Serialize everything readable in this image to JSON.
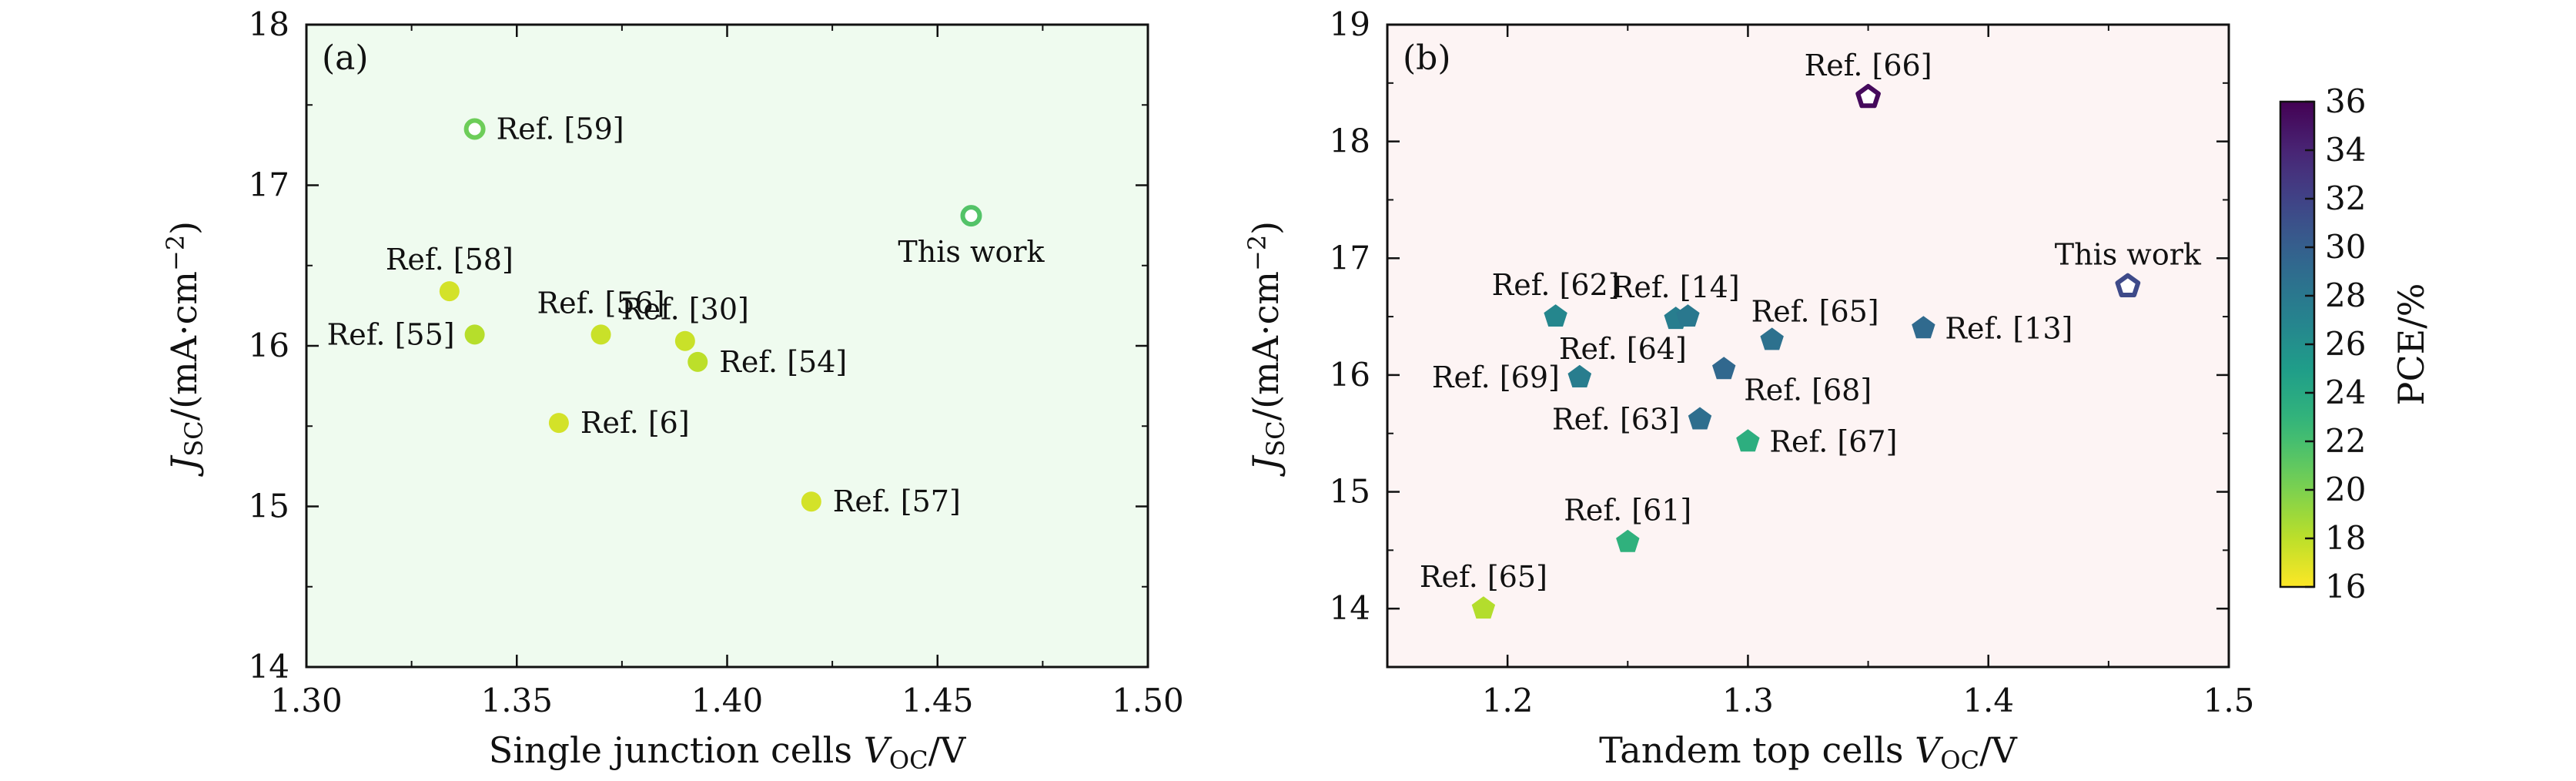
{
  "colors": {
    "panel_a_bg": "#effbef",
    "panel_b_bg": "#fdf4f4",
    "axis": "#111111"
  },
  "colorbar": {
    "label": "PCE/%",
    "range": [
      16,
      36
    ],
    "ticks": [
      16,
      18,
      20,
      22,
      24,
      26,
      28,
      30,
      32,
      34,
      36
    ],
    "colormap": "viridis-reversed"
  },
  "chart_data": [
    {
      "type": "scatter",
      "panel_label": "(a)",
      "title": "",
      "xlabel": "Single junction cells V_OC/V",
      "xlabel_main": "Single junction cells ",
      "xlabel_var": "V",
      "xlabel_sub": "OC",
      "xlabel_unit": "/V",
      "ylabel": "J_SC/(mA·cm^−2)",
      "ylabel_var": "J",
      "ylabel_sub": "SC",
      "ylabel_unit": "/(mA·cm",
      "ylabel_exp": "−2",
      "ylabel_close": ")",
      "xlim": [
        1.3,
        1.5
      ],
      "ylim": [
        14,
        18
      ],
      "xticks": [
        1.3,
        1.35,
        1.4,
        1.45,
        1.5
      ],
      "xtick_labels": [
        "1.30",
        "1.35",
        "1.40",
        "1.45",
        "1.50"
      ],
      "yticks": [
        14,
        15,
        16,
        17,
        18
      ],
      "ytick_labels": [
        "14",
        "15",
        "16",
        "17",
        "18"
      ],
      "marker": "circle",
      "grid": false,
      "points": [
        {
          "label": "Ref. [59]",
          "x": 1.34,
          "y": 17.35,
          "pce": 20.5,
          "hollow": true,
          "label_pos": "right"
        },
        {
          "label": "This work",
          "x": 1.458,
          "y": 16.81,
          "pce": 21.5,
          "hollow": true,
          "label_pos": "below"
        },
        {
          "label": "Ref. [58]",
          "x": 1.334,
          "y": 16.34,
          "pce": 17.3,
          "hollow": false,
          "label_pos": "above"
        },
        {
          "label": "Ref. [55]",
          "x": 1.34,
          "y": 16.07,
          "pce": 18.2,
          "hollow": false,
          "label_pos": "left"
        },
        {
          "label": "Ref. [56]",
          "x": 1.37,
          "y": 16.07,
          "pce": 17.6,
          "hollow": false,
          "label_pos": "above"
        },
        {
          "label": "Ref. [30]",
          "x": 1.39,
          "y": 16.03,
          "pce": 17.6,
          "hollow": false,
          "label_pos": "above"
        },
        {
          "label": "Ref. [54]",
          "x": 1.393,
          "y": 15.9,
          "pce": 18.0,
          "hollow": false,
          "label_pos": "right"
        },
        {
          "label": "Ref. [6]",
          "x": 1.36,
          "y": 15.52,
          "pce": 17.3,
          "hollow": false,
          "label_pos": "right"
        },
        {
          "label": "Ref. [57]",
          "x": 1.42,
          "y": 15.03,
          "pce": 17.3,
          "hollow": false,
          "label_pos": "right"
        }
      ]
    },
    {
      "type": "scatter",
      "panel_label": "(b)",
      "title": "",
      "xlabel": "Tandem top cells V_OC/V",
      "xlabel_main": "Tandem top cells ",
      "xlabel_var": "V",
      "xlabel_sub": "OC",
      "xlabel_unit": "/V",
      "ylabel": "J_SC/(mA·cm^−2)",
      "ylabel_var": "J",
      "ylabel_sub": "SC",
      "ylabel_unit": "/(mA·cm",
      "ylabel_exp": "−2",
      "ylabel_close": ")",
      "xlim": [
        1.15,
        1.5
      ],
      "ylim": [
        13.5,
        19
      ],
      "xticks": [
        1.2,
        1.3,
        1.4,
        1.5
      ],
      "xtick_labels": [
        "1.2",
        "1.3",
        "1.4",
        "1.5"
      ],
      "yticks": [
        14,
        15,
        16,
        17,
        18,
        19
      ],
      "ytick_labels": [
        "14",
        "15",
        "16",
        "17",
        "18",
        "19"
      ],
      "marker": "pentagon",
      "grid": false,
      "points": [
        {
          "label": "Ref. [66]",
          "x": 1.35,
          "y": 18.38,
          "pce": 35.5,
          "hollow": true,
          "label_pos": "above"
        },
        {
          "label": "This work",
          "x": 1.458,
          "y": 16.76,
          "pce": 31.5,
          "hollow": true,
          "label_pos": "above"
        },
        {
          "label": "Ref. [62]",
          "x": 1.22,
          "y": 16.5,
          "pce": 26.8,
          "hollow": false,
          "label_pos": "above"
        },
        {
          "label": "Ref. [14]",
          "x": 1.27,
          "y": 16.48,
          "pce": 27.5,
          "hollow": false,
          "label_pos": "above"
        },
        {
          "label": "",
          "x": 1.275,
          "y": 16.5,
          "pce": 28.0,
          "hollow": false,
          "label_pos": "none"
        },
        {
          "label": "Ref. [65]",
          "x": 1.31,
          "y": 16.3,
          "pce": 28.6,
          "hollow": false,
          "label_pos": "above-right"
        },
        {
          "label": "Ref. [13]",
          "x": 1.373,
          "y": 16.4,
          "pce": 29.2,
          "hollow": false,
          "label_pos": "right"
        },
        {
          "label": "Ref. [64]",
          "x": 1.23,
          "y": 15.98,
          "pce": 27.5,
          "hollow": false,
          "label_pos": "above-right"
        },
        {
          "label": "Ref. [69]",
          "x": 1.23,
          "y": 15.98,
          "pce": 27.5,
          "hollow": false,
          "label_pos": "left"
        },
        {
          "label": "Ref. [68]",
          "x": 1.29,
          "y": 16.05,
          "pce": 29.3,
          "hollow": false,
          "label_pos": "right-below"
        },
        {
          "label": "Ref. [63]",
          "x": 1.28,
          "y": 15.62,
          "pce": 28.8,
          "hollow": false,
          "label_pos": "left"
        },
        {
          "label": "Ref. [67]",
          "x": 1.3,
          "y": 15.43,
          "pce": 23.5,
          "hollow": false,
          "label_pos": "right"
        },
        {
          "label": "Ref. [61]",
          "x": 1.25,
          "y": 14.57,
          "pce": 23.2,
          "hollow": false,
          "label_pos": "above"
        },
        {
          "label": "Ref. [65]",
          "x": 1.19,
          "y": 14.0,
          "pce": 18.3,
          "hollow": false,
          "label_pos": "above"
        }
      ]
    }
  ]
}
